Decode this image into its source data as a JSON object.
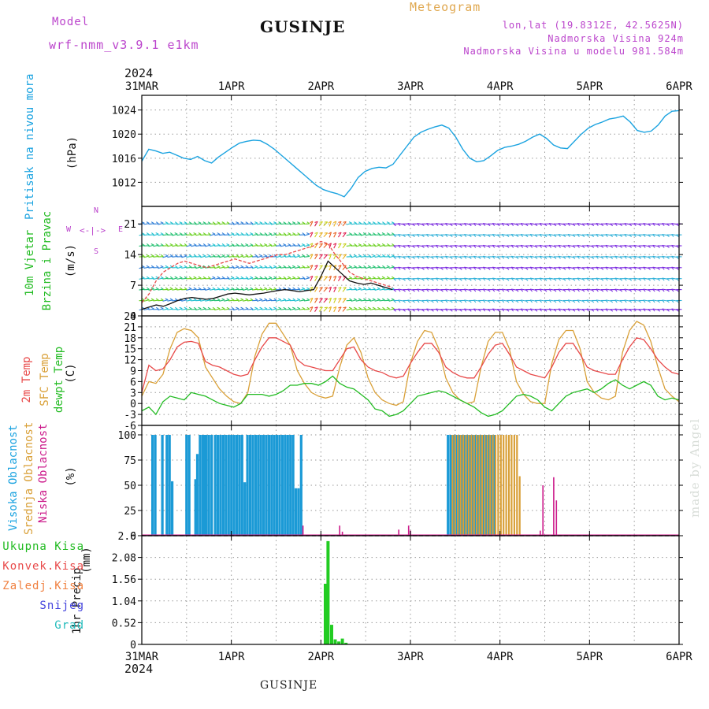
{
  "header": {
    "model_label": "Model",
    "model_name": "wrf-nmm_v3.9.1 e1km",
    "title": "GUSINJE",
    "meteogram": "Meteogram",
    "lonlat": "lon,lat (19.8312E, 42.5625N)",
    "altitude": "Nadmorska Visina 924m",
    "model_altitude": "Nadmorska Visina u modelu 981.584m",
    "footer_title": "GUSINJE",
    "credit": "made by Angel",
    "year_top": "2024",
    "year_bottom": "2024"
  },
  "colors": {
    "pressure": "#1ba3e0",
    "temp2m": "#e84a4a",
    "sfc": "#d9a038",
    "dewpt": "#22bb22",
    "high_cloud": "#1b9ad6",
    "mid_cloud": "#d9a038",
    "low_cloud": "#cc1a8a",
    "precip": "#22cc22",
    "purple": "#bb44cc"
  },
  "chart_data": [
    {
      "type": "line",
      "panel": "pressure",
      "ylabel_name": "Pritisak na nivou mora",
      "ylabel_unit": "(hPa)",
      "x_ticks": [
        "31MAR",
        "1APR",
        "2APR",
        "3APR",
        "4APR",
        "5APR",
        "6APR"
      ],
      "yticks": [
        "1012",
        "1016",
        "1020",
        "1024"
      ],
      "ylim": [
        1008,
        1025
      ],
      "grid": true,
      "series": [
        {
          "values": [
            1015.5,
            1017.5,
            1017.2,
            1016.8,
            1017.0,
            1016.5,
            1016.0,
            1015.8,
            1016.3,
            1015.6,
            1015.2,
            1016.2,
            1017.0,
            1017.8,
            1018.5,
            1018.8,
            1019.0,
            1018.9,
            1018.3,
            1017.5,
            1016.5,
            1015.5,
            1014.5,
            1013.5,
            1012.5,
            1011.5,
            1010.8,
            1010.4,
            1010.1,
            1009.6,
            1011.0,
            1012.8,
            1013.8,
            1014.3,
            1014.5,
            1014.4,
            1015.0,
            1016.5,
            1018.0,
            1019.5,
            1020.3,
            1020.8,
            1021.2,
            1021.5,
            1021.0,
            1019.5,
            1017.5,
            1016.0,
            1015.4,
            1015.6,
            1016.4,
            1017.3,
            1017.8,
            1018.0,
            1018.3,
            1018.8,
            1019.5,
            1020.0,
            1019.3,
            1018.2,
            1017.7,
            1017.6,
            1018.8,
            1020.0,
            1021.0,
            1021.6,
            1022.0,
            1022.5,
            1022.7,
            1023.0,
            1022.0,
            1020.6,
            1020.3,
            1020.5,
            1021.5,
            1023.0,
            1023.8,
            1023.9
          ]
        }
      ]
    },
    {
      "type": "line",
      "panel": "wind",
      "ylabel_name": "10m Vjetar",
      "ylabel_name2": "Brzina i Pravac",
      "ylabel_unit": "(m/s)",
      "compass": {
        "n": "N",
        "w": "W",
        "e": "E",
        "s": "S",
        "arrow": "<-|->"
      },
      "yticks": [
        "0",
        "7",
        "14",
        "21"
      ],
      "ylim": [
        0,
        25
      ],
      "grid": true,
      "series": [
        {
          "name": "mean speed",
          "values": [
            1.5,
            2,
            2.5,
            2.2,
            2.8,
            3.5,
            4,
            4.2,
            4,
            3.8,
            4,
            4.5,
            5,
            5.2,
            5,
            4.8,
            5,
            5.2,
            5.5,
            5.8,
            6,
            5.8,
            5.5,
            5.8,
            6,
            9,
            12.5,
            11,
            9.5,
            8,
            7.5,
            7.2,
            7.5,
            7,
            6.5,
            6
          ]
        },
        {
          "name": "gust",
          "values": [
            3,
            5,
            8,
            10,
            11,
            12,
            12.5,
            12,
            11.5,
            11,
            11.5,
            12,
            12.5,
            13,
            12.5,
            12,
            12.5,
            13,
            13.5,
            14,
            14,
            14.5,
            15,
            15.5,
            16,
            17,
            16.5,
            14,
            12,
            10,
            9,
            8.5,
            8,
            7.5,
            7,
            6.5
          ]
        }
      ]
    },
    {
      "type": "line",
      "panel": "temperature",
      "ylabel_name": "2m Temp",
      "ylabel_name2": "SFC Temp",
      "ylabel_name3": "dewpt Temp",
      "ylabel_unit": "(C)",
      "yticks": [
        "-6",
        "-3",
        "0",
        "3",
        "6",
        "9",
        "12",
        "15",
        "18",
        "21",
        "24"
      ],
      "ylim": [
        -6,
        24
      ],
      "grid": true,
      "series": [
        {
          "name": "2m Temp",
          "values": [
            3,
            10.5,
            9,
            9.5,
            12,
            15.5,
            16.8,
            17,
            16.5,
            11.5,
            10.5,
            10,
            9,
            8,
            7.5,
            8,
            12,
            15.5,
            18,
            18,
            17,
            16,
            12,
            10.5,
            10,
            9.5,
            9,
            9,
            12,
            15,
            15.5,
            12,
            10,
            9,
            8.5,
            7.5,
            7,
            7.5,
            11,
            14,
            16.5,
            16.5,
            14,
            10,
            8.5,
            7.5,
            7,
            7,
            10,
            13.5,
            16,
            16.5,
            13.5,
            10,
            9,
            8,
            7.5,
            7,
            10,
            14,
            16.5,
            16.5,
            13.5,
            10,
            9,
            8.5,
            8,
            8,
            12,
            15.5,
            18,
            17.5,
            15,
            12,
            10,
            8.5,
            8
          ]
        },
        {
          "name": "SFC Temp",
          "values": [
            2,
            6,
            5.5,
            8,
            15,
            19.5,
            20.5,
            20,
            18,
            10,
            7,
            4,
            2,
            0.5,
            0,
            3,
            13,
            19,
            22,
            22,
            19,
            16,
            9,
            5.5,
            3,
            2,
            1.5,
            2,
            10,
            16,
            18,
            14,
            7,
            3,
            1,
            0,
            -0.5,
            0.5,
            11,
            17,
            20,
            19.5,
            15,
            7,
            3,
            1,
            0,
            0.5,
            10,
            17,
            19.5,
            19.5,
            15,
            6,
            2.5,
            0.5,
            0,
            0,
            11,
            17.5,
            20,
            20,
            15,
            6,
            3,
            1.5,
            1,
            2,
            14,
            20,
            22.5,
            21.5,
            17,
            10,
            4,
            2,
            0.5
          ]
        },
        {
          "name": "dewpt Temp",
          "values": [
            -2,
            -1,
            -3,
            0.5,
            2,
            1.5,
            1,
            3,
            2.5,
            2,
            1,
            0,
            -0.5,
            -1,
            0,
            2.5,
            2.5,
            2.5,
            2,
            2.5,
            3.5,
            5,
            5,
            5.5,
            5.5,
            5,
            6,
            7.5,
            5.5,
            4.5,
            4,
            2.5,
            1,
            -1.5,
            -2,
            -3.5,
            -3,
            -2,
            0,
            2,
            2.5,
            3,
            3.5,
            3,
            2,
            1,
            0,
            -1,
            -2.5,
            -3.5,
            -3,
            -2,
            0,
            2,
            2.5,
            2,
            1,
            -1,
            -2,
            0,
            2,
            3,
            3.5,
            4,
            3,
            4,
            5.5,
            6.5,
            5,
            4,
            5,
            6,
            5,
            2,
            1,
            1.5,
            1
          ]
        }
      ]
    },
    {
      "type": "bar",
      "panel": "cloud",
      "ylabel_name": "Visoka Oblacnost",
      "ylabel_name2": "Srednja Oblacnost",
      "ylabel_name3": "Niska Oblacnost",
      "ylabel_unit": "(%)",
      "yticks": [
        "0",
        "25",
        "50",
        "75",
        "100"
      ],
      "ylim": [
        0,
        100
      ],
      "grid": true,
      "series": [
        {
          "name": "Visoka Oblacnost",
          "x": [
            0.12,
            0.15,
            0.23,
            0.28,
            0.31,
            0.34,
            0.5,
            0.53,
            0.6,
            0.62,
            0.65,
            0.68,
            0.7,
            0.72,
            0.75,
            0.78,
            0.82,
            0.85,
            0.88,
            0.91,
            0.94,
            0.97,
            1.0,
            1.03,
            1.06,
            1.09,
            1.12,
            1.15,
            1.18,
            1.21,
            1.24,
            1.27,
            1.3,
            1.33,
            1.36,
            1.39,
            1.42,
            1.45,
            1.48,
            1.51,
            1.54,
            1.57,
            1.6,
            1.63,
            1.66,
            1.69,
            1.72,
            1.75,
            1.78,
            3.42,
            3.45,
            3.48,
            3.51,
            3.54,
            3.57,
            3.6,
            3.63,
            3.66,
            3.7,
            3.73,
            3.76,
            3.79,
            3.82,
            3.85,
            3.88,
            3.91,
            3.94
          ],
          "values": [
            100,
            100,
            100,
            100,
            100,
            54,
            100,
            100,
            56,
            81,
            100,
            100,
            100,
            100,
            100,
            100,
            100,
            100,
            100,
            100,
            100,
            100,
            100,
            100,
            100,
            100,
            100,
            53,
            100,
            100,
            100,
            100,
            100,
            100,
            100,
            100,
            100,
            100,
            100,
            100,
            100,
            100,
            100,
            100,
            100,
            100,
            47,
            47,
            100,
            100,
            100,
            100,
            100,
            100,
            100,
            100,
            100,
            100,
            100,
            100,
            100,
            100,
            100,
            100,
            100,
            100,
            100
          ]
        },
        {
          "name": "Srednja Oblacnost",
          "x": [
            3.47,
            3.5,
            3.53,
            3.56,
            3.59,
            3.62,
            3.65,
            3.68,
            3.71,
            3.74,
            3.77,
            3.8,
            3.83,
            3.86,
            3.89,
            3.92,
            3.95,
            3.98,
            4.01,
            4.04,
            4.07,
            4.1,
            4.13,
            4.16,
            4.19,
            4.22
          ],
          "values": [
            100,
            100,
            100,
            100,
            100,
            100,
            100,
            100,
            100,
            100,
            100,
            100,
            100,
            100,
            100,
            100,
            100,
            100,
            100,
            100,
            100,
            100,
            100,
            100,
            100,
            59
          ]
        },
        {
          "name": "Niska Oblacnost",
          "x": [
            1.8,
            2.21,
            2.24,
            2.87,
            2.98,
            3.0,
            4.45,
            4.48,
            4.6,
            4.63
          ],
          "values": [
            10,
            10,
            4,
            6,
            10,
            5,
            5,
            50,
            58,
            35
          ]
        }
      ]
    },
    {
      "type": "bar",
      "panel": "precip",
      "ylabel_name": "1hr Precip",
      "ylabel_unit": "(mm)",
      "legend": [
        "Ukupna Kisa",
        "Konvek.Kisa",
        "Zaledj.Kisa",
        "Snijeg",
        "Grad"
      ],
      "yticks": [
        "0",
        "0.52",
        "1.04",
        "1.56",
        "2.08",
        "2.6"
      ],
      "ylim": [
        0,
        2.6
      ],
      "grid": true,
      "x_ticks": [
        "31MAR",
        "1APR",
        "2APR",
        "3APR",
        "4APR",
        "5APR",
        "6APR"
      ],
      "x": [
        2.05,
        2.08,
        2.12,
        2.16,
        2.2,
        2.24,
        2.28
      ],
      "values": [
        1.45,
        2.47,
        0.47,
        0.12,
        0.07,
        0.14,
        0.04
      ]
    }
  ]
}
